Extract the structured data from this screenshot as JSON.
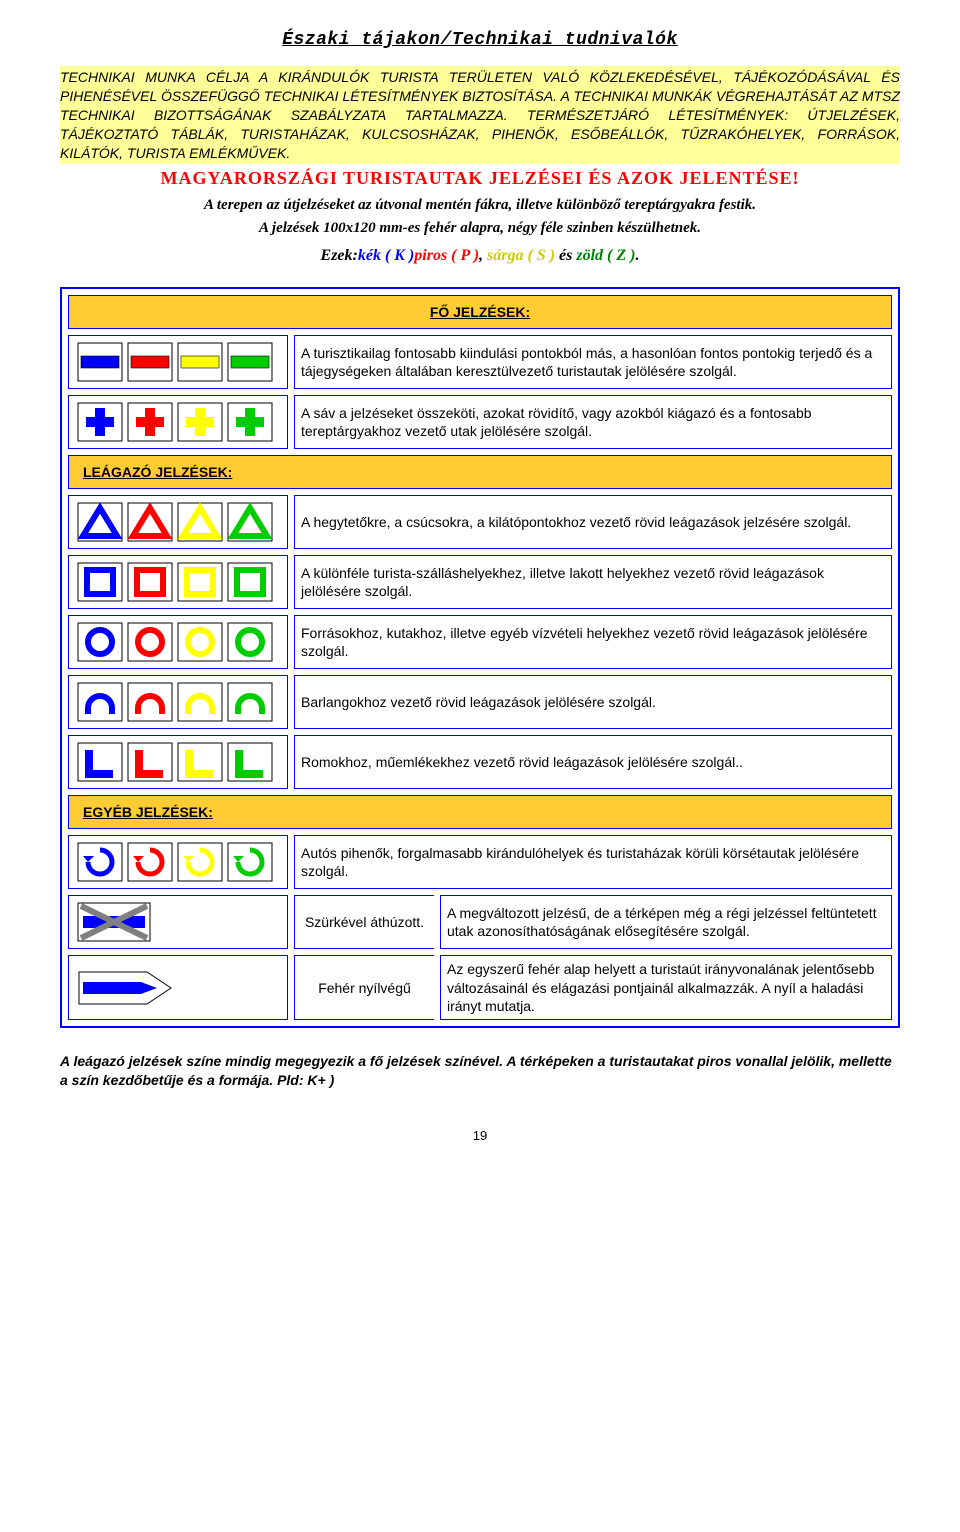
{
  "title": "Északi tájakon/Technikai tudnivalók",
  "intro": "TECHNIKAI MUNKA CÉLJA A KIRÁNDULÓK TURISTA TERÜLETEN VALÓ KÖZLEKEDÉSÉVEL, TÁJÉKOZÓDÁSÁVAL ÉS PIHENÉSÉVEL ÖSSZEFÜGGŐ TECHNIKAI LÉTESÍTMÉNYEK BIZTOSÍTÁSA. A TECHNIKAI MUNKÁK VÉGREHAJTÁSÁT AZ MTSZ TECHNIKAI BIZOTTSÁGÁNAK SZABÁLYZATA TARTALMAZZA. TERMÉSZETJÁRÓ LÉTESÍTMÉNYEK: ÚTJELZÉSEK, TÁJÉKOZTATÓ TÁBLÁK, TURISTAHÁZAK, KULCSOSHÁZAK, PIHENŐK, ESŐBEÁLLÓK, TŰZRAKÓHELYEK, FORRÁSOK, KILÁTÓK, TURISTA EMLÉKMŰVEK.",
  "banner": "MAGYARORSZÁGI TURISTAUTAK JELZÉSEI ÉS AZOK JELENTÉSE!",
  "body1": "A terepen az útjelzéseket az útvonal mentén fákra, illetve különböző tereptárgyakra festik.",
  "body2": "A jelzések 100x120 mm-es fehér alapra, négy féle szinben készülhetnek.",
  "colorline": {
    "prefix": "Ezek:",
    "k": "kék ( K )",
    "p": "piros ( P )",
    "mid": ", ",
    "s": "sárga ( S )",
    "and": " és ",
    "z": "zöld ( Z )",
    "end": "."
  },
  "sections": {
    "fo": "FŐ JELZÉSEK:",
    "leagazo": "LEÁGAZÓ JELZÉSEK:",
    "egyeb": "EGYÉB JELZÉSEK:"
  },
  "rows": {
    "stripe": "A turisztikailag fontosabb kiindulási pontokból más, a hasonlóan fontos pontokig terjedő és a tájegységeken általában keresztülvezető turistautak jelölésére szolgál.",
    "cross": "A sáv a jelzéseket összeköti, azokat rövidítő, vagy azokból kiágazó és a fontosabb tereptárgyakhoz vezető utak jelölésére szolgál.",
    "triangle": "A hegytetőkre, a csúcsokra, a kilátópontokhoz vezető rövid leágazások jelzésére szolgál.",
    "square": "A különféle turista-szálláshelyekhez, illetve lakott helyekhez vezető rövid leágazások jelölésére szolgál.",
    "circle": "Forrásokhoz, kutakhoz, illetve egyéb vízvételi helyekhez vezető rövid leágazások jelölésére szolgál.",
    "omega": "Barlangokhoz vezető rövid leágazások jelölésére szolgál.",
    "L": "Romokhoz, műemlékekhez vezető rövid leágazások jelölésére szolgál..",
    "spiral": "Autós pihenők, forgalmasabb kirándulóhelyek és turistaházak körüli körsétautak jelölésére szolgál.",
    "gray_label": "Szürkével áthúzott.",
    "gray": "A megváltozott jelzésű, de a térképen még a régi jelzéssel feltüntetett utak azonosíthatóságának elősegítésére szolgál.",
    "arrow_label": "Fehér nyílvégű",
    "arrow": "Az egyszerű fehér alap helyett a turistaút irányvonalának jelentősebb változásainál és elágazási pontjainál alkalmazzák. A nyíl a haladási irányt mutatja."
  },
  "footer": "A leágazó jelzések színe mindig megegyezik a fő jelzések színével. A térképeken a turistautakat piros vonallal jelölik, mellette a szín kezdőbetűje és a formája. Pld: K+ )",
  "pagenum": "19",
  "colors": {
    "blue": "#0000ff",
    "red": "#ff0000",
    "yellow": "#ffff00",
    "green": "#00cc00",
    "white": "#ffffff",
    "black": "#000000",
    "gray": "#808080"
  }
}
